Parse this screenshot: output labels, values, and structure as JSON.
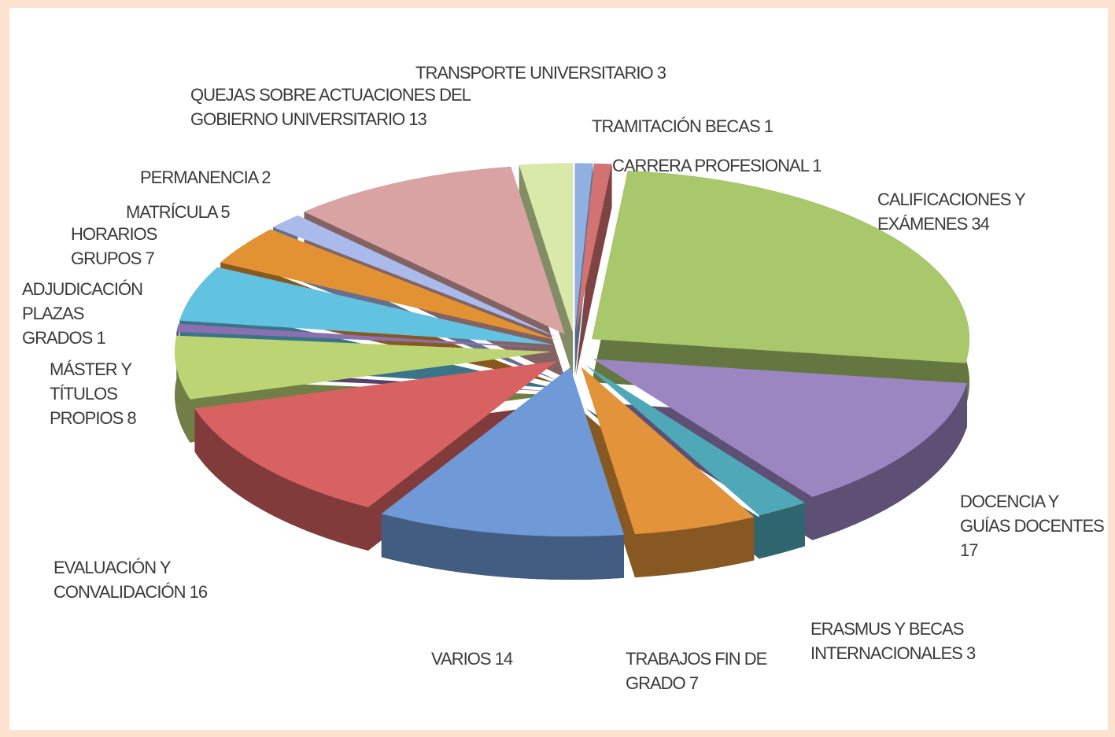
{
  "chart_data": {
    "type": "pie",
    "categories": [
      "TRAMITACIÓN BECAS",
      "CARRERA PROFESIONAL",
      "CALIFICACIONES Y EXÁMENES",
      "DOCENCIA Y GUÍAS DOCENTES",
      "ERASMUS Y BECAS INTERNACIONALES",
      "TRABAJOS FIN DE GRADO",
      "VARIOS",
      "EVALUACIÓN Y CONVALIDACIÓN",
      "MÁSTER Y TÍTULOS PROPIOS",
      "ADJUDICACIÓN PLAZAS GRADOS",
      "HORARIOS GRUPOS",
      "MATRÍCULA",
      "PERMANENCIA",
      "QUEJAS SOBRE ACTUACIONES DEL GOBIERNO UNIVERSITARIO",
      "TRANSPORTE UNIVERSITARIO"
    ],
    "values": [
      1,
      1,
      34,
      17,
      3,
      7,
      14,
      16,
      8,
      1,
      7,
      5,
      2,
      13,
      3
    ],
    "colors": [
      "#8fb0e0",
      "#d27272",
      "#a9c76b",
      "#9b86c2",
      "#4fa8b8",
      "#e3933a",
      "#7099d8",
      "#d86262",
      "#bcd474",
      "#8a70b0",
      "#62c2e2",
      "#e29232",
      "#aabaea",
      "#d9a3a3",
      "#d9e9a9"
    ]
  }
}
